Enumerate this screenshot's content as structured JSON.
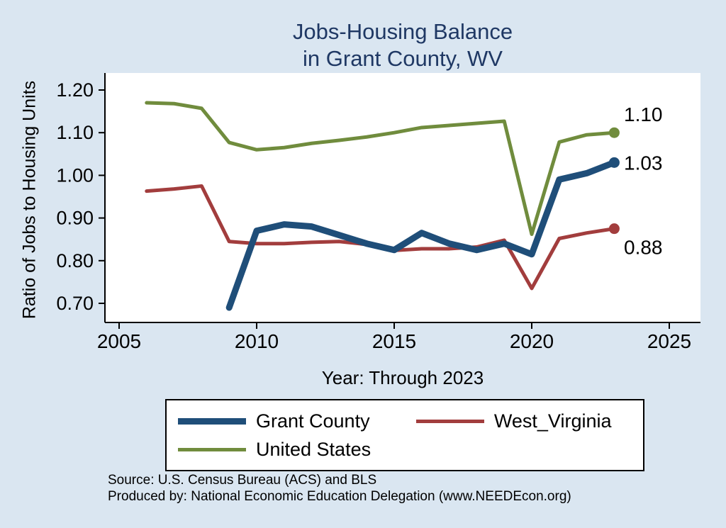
{
  "title": {
    "line1": "Jobs-Housing Balance",
    "line2": "in Grant County, WV",
    "color": "#1f3864"
  },
  "axes": {
    "y_label": "Ratio of Jobs to Housing Units",
    "x_label": "Year: Through 2023"
  },
  "footer": {
    "source_line1": "Source: U.S. Census Bureau (ACS) and BLS",
    "source_line2": "Produced by: National Economic Education Delegation (www.NEEDEcon.org)"
  },
  "colors": {
    "background": "#dae6f1",
    "plot_background": "#ffffff",
    "axis": "#000000",
    "title": "#1f3864"
  },
  "chart_data": {
    "type": "line",
    "title": "Jobs-Housing Balance in Grant County, WV",
    "xlabel": "Year: Through 2023",
    "ylabel": "Ratio of Jobs to Housing Units",
    "xlim": [
      2005,
      2025
    ],
    "ylim": [
      0.7,
      1.2
    ],
    "grid": false,
    "legend_position": "bottom",
    "x_ticks": [
      2005,
      2010,
      2015,
      2020,
      2025
    ],
    "x_tick_labels": [
      "2005",
      "2010",
      "2015",
      "2020",
      "2025"
    ],
    "y_ticks": [
      1.2,
      1.1,
      1.0,
      0.9,
      0.8,
      0.7
    ],
    "y_tick_labels": [
      "1.20",
      "1.10",
      "1.00",
      "0.90",
      "0.80",
      "0.70"
    ],
    "series": [
      {
        "name": "Grant County",
        "color": "#1f4e79",
        "width": 9,
        "end_label": "1.03",
        "end_label_dy": 0,
        "x": [
          2009,
          2010,
          2011,
          2012,
          2013,
          2014,
          2015,
          2016,
          2017,
          2018,
          2019,
          2020,
          2021,
          2022,
          2023
        ],
        "values": [
          0.69,
          0.87,
          0.885,
          0.88,
          0.86,
          0.84,
          0.825,
          0.865,
          0.84,
          0.825,
          0.84,
          0.815,
          0.99,
          1.005,
          1.03
        ]
      },
      {
        "name": "West_Virginia",
        "color": "#a23d3d",
        "width": 5,
        "end_label": "0.88",
        "end_label_dy": 26,
        "x": [
          2006,
          2007,
          2008,
          2009,
          2010,
          2011,
          2012,
          2013,
          2014,
          2015,
          2016,
          2017,
          2018,
          2019,
          2020,
          2021,
          2022,
          2023
        ],
        "values": [
          0.963,
          0.968,
          0.975,
          0.845,
          0.84,
          0.84,
          0.843,
          0.845,
          0.838,
          0.824,
          0.828,
          0.828,
          0.832,
          0.848,
          0.735,
          0.852,
          0.865,
          0.875
        ]
      },
      {
        "name": "United States",
        "color": "#708c3d",
        "width": 5,
        "end_label": "1.10",
        "end_label_dy": -26,
        "x": [
          2006,
          2007,
          2008,
          2009,
          2010,
          2011,
          2012,
          2013,
          2014,
          2015,
          2016,
          2017,
          2018,
          2019,
          2020,
          2021,
          2022,
          2023
        ],
        "values": [
          1.17,
          1.168,
          1.157,
          1.077,
          1.06,
          1.065,
          1.075,
          1.082,
          1.09,
          1.1,
          1.112,
          1.117,
          1.122,
          1.127,
          0.862,
          1.078,
          1.095,
          1.1
        ]
      }
    ]
  }
}
